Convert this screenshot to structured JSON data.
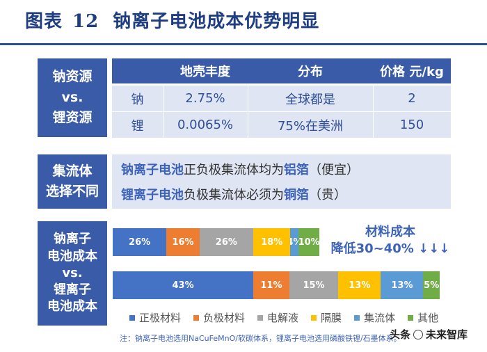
{
  "header": {
    "prefix": "图表",
    "number": "12",
    "title": "钠离子电池成本优势明显"
  },
  "resources": {
    "label_lines": [
      "钠资源",
      "vs.",
      "锂资源"
    ],
    "columns": [
      "地壳丰度",
      "分布",
      "价格 元/kg"
    ],
    "rows": [
      {
        "element": "钠",
        "abundance": "2.75%",
        "distribution": "全球都是",
        "price": "2"
      },
      {
        "element": "锂",
        "abundance": "0.0065%",
        "distribution": "75%在美洲",
        "price": "150"
      }
    ]
  },
  "collector": {
    "label_lines": [
      "集流体",
      "选择不同"
    ],
    "lines": [
      {
        "subject": "钠离子电池",
        "mid": "正负极集流体均为",
        "material": "铝箔",
        "tail": "（便宜）"
      },
      {
        "subject": "锂离子电池",
        "mid": "负极集流体必须为",
        "material": "铜箔",
        "tail": "（贵）"
      }
    ]
  },
  "cost": {
    "label_lines": [
      "钠离子",
      "电池成本",
      "vs.",
      "锂离子",
      "电池成本"
    ],
    "callout_lines": [
      "材料成本",
      "降低30~40% ↓↓↓"
    ]
  },
  "colors": {
    "cathode": "#4472c4",
    "anode": "#ed7d31",
    "electrolyte": "#a5a5a5",
    "separator": "#ffc000",
    "collector": "#5b9bd5",
    "other": "#70ad47"
  },
  "chart_data": {
    "type": "bar",
    "orientation": "horizontal",
    "stacked": true,
    "categories": [
      "钠离子电池成本",
      "锂离子电池成本"
    ],
    "series": [
      {
        "name": "正极材料",
        "values": [
          26,
          43
        ],
        "labels": [
          "26%",
          "43%"
        ]
      },
      {
        "name": "负极材料",
        "values": [
          16,
          11
        ],
        "labels": [
          "16%",
          "11%"
        ]
      },
      {
        "name": "电解液",
        "values": [
          26,
          15
        ],
        "labels": [
          "26%",
          "15%"
        ]
      },
      {
        "name": "隔膜",
        "values": [
          18,
          13
        ],
        "labels": [
          "18%",
          "13%"
        ]
      },
      {
        "name": "集流体",
        "values": [
          4,
          13
        ],
        "labels": [
          "4%",
          "13%"
        ]
      },
      {
        "name": "其他",
        "values": [
          10,
          5
        ],
        "labels": [
          "10%",
          "5%"
        ]
      }
    ],
    "legend_position": "bottom"
  },
  "footnote": "注：钠离子电池选用NaCuFeMnO/软碳体系，锂离子电池选用磷酸铁锂/石墨体系。",
  "watermark": {
    "left": "头条",
    "right": "未来智库"
  }
}
